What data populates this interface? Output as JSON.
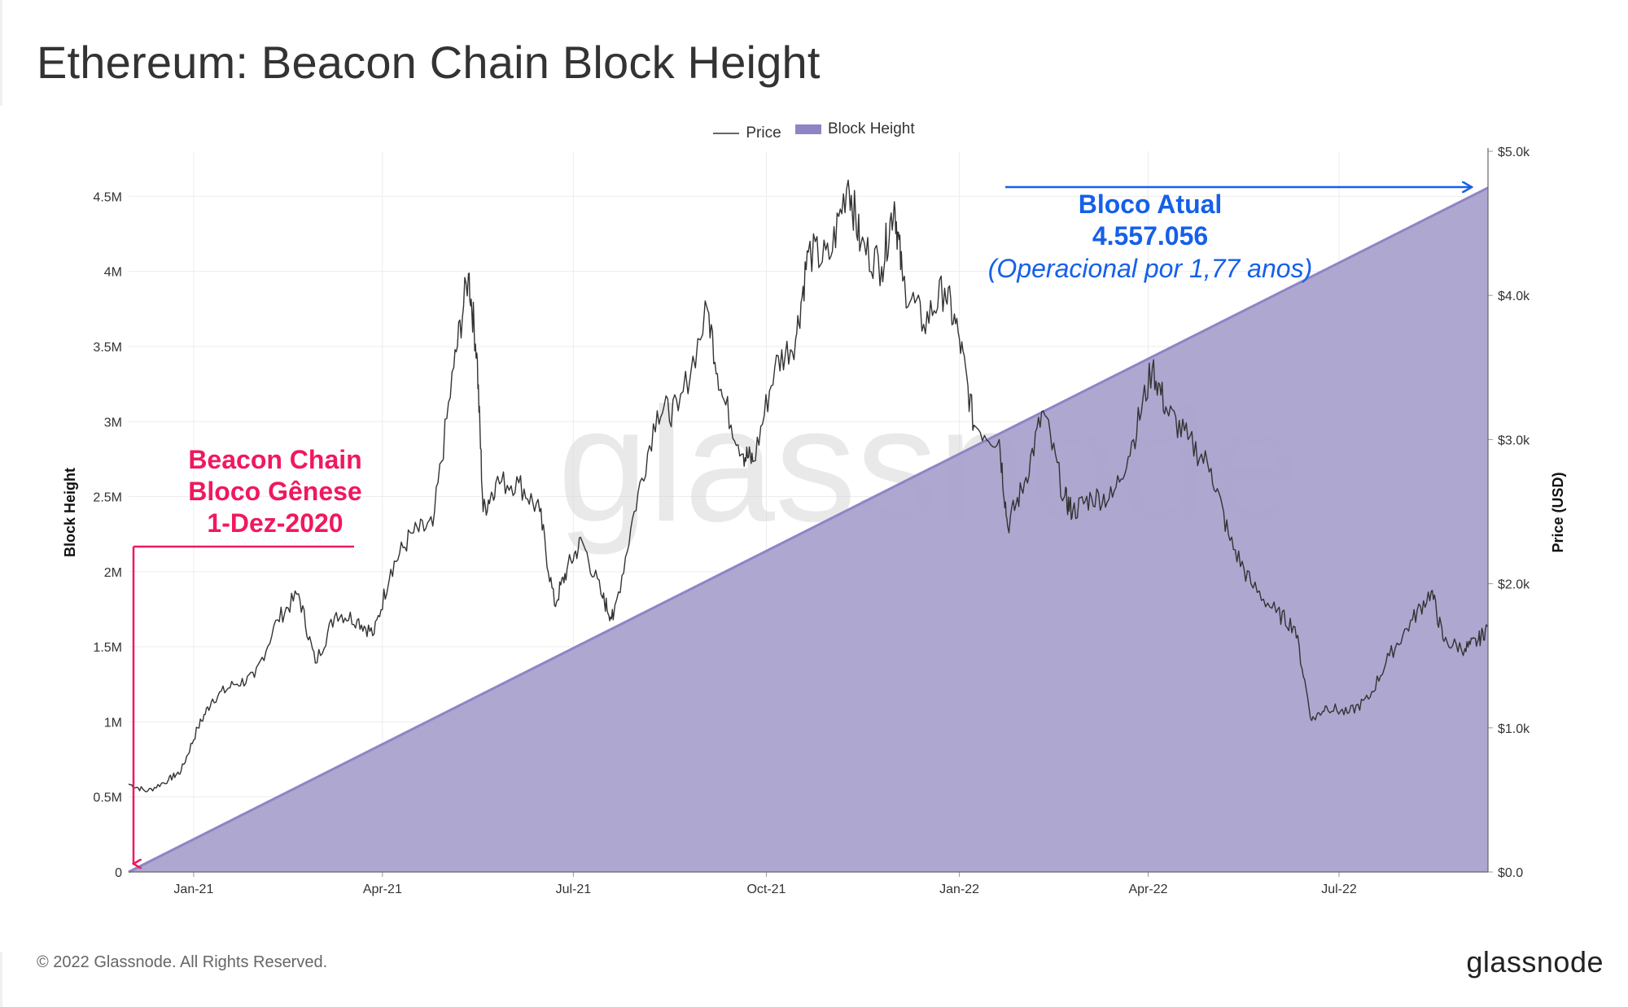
{
  "title": "Ethereum: Beacon Chain Block Height",
  "legend": {
    "price_label": "Price",
    "block_label": "Block Height"
  },
  "footer": {
    "copyright": "© 2022 Glassnode. All Rights Reserved.",
    "brand": "glassnode",
    "watermark": "glassnode"
  },
  "annotations": {
    "genesis": [
      "Beacon Chain",
      "Bloco Gênese",
      "1-Dez-2020"
    ],
    "current": [
      "Bloco Atual",
      "4.557.056",
      "(Operacional por 1,77 anos)"
    ]
  },
  "colors": {
    "area": "#a7a0cc",
    "area_line": "#8f84c5",
    "price": "#333333",
    "pink": "#f0185e",
    "blue": "#1560e8",
    "grid": "#ececec"
  },
  "chart_data": {
    "type": "line",
    "title": "Ethereum: Beacon Chain Block Height",
    "xlabel": "",
    "ylabel_left": "Block Height",
    "ylabel_right": "Price (USD)",
    "ylim_left": [
      0,
      4800000
    ],
    "ylim_right": [
      0,
      5000
    ],
    "xlim": [
      "2020-12-01",
      "2022-09-10"
    ],
    "x_ticks": [
      {
        "label": "Jan-21",
        "date": "2021-01-01"
      },
      {
        "label": "Apr-21",
        "date": "2021-04-01"
      },
      {
        "label": "Jul-21",
        "date": "2021-07-01"
      },
      {
        "label": "Oct-21",
        "date": "2021-10-01"
      },
      {
        "label": "Jan-22",
        "date": "2022-01-01"
      },
      {
        "label": "Apr-22",
        "date": "2022-04-01"
      },
      {
        "label": "Jul-22",
        "date": "2022-07-01"
      }
    ],
    "y_left_ticks": [
      {
        "label": "0",
        "value": 0
      },
      {
        "label": "0.5M",
        "value": 500000
      },
      {
        "label": "1M",
        "value": 1000000
      },
      {
        "label": "1.5M",
        "value": 1500000
      },
      {
        "label": "2M",
        "value": 2000000
      },
      {
        "label": "2.5M",
        "value": 2500000
      },
      {
        "label": "3M",
        "value": 3000000
      },
      {
        "label": "3.5M",
        "value": 3500000
      },
      {
        "label": "4M",
        "value": 4000000
      },
      {
        "label": "4.5M",
        "value": 4500000
      }
    ],
    "y_right_ticks": [
      {
        "label": "$0.0",
        "value": 0
      },
      {
        "label": "$1.0k",
        "value": 1000
      },
      {
        "label": "$2.0k",
        "value": 2000
      },
      {
        "label": "$3.0k",
        "value": 3000
      },
      {
        "label": "$4.0k",
        "value": 4000
      },
      {
        "label": "$5.0k",
        "value": 5000
      }
    ],
    "series": [
      {
        "name": "Block Height",
        "type": "area",
        "axis": "left",
        "points": [
          [
            "2020-12-01",
            0
          ],
          [
            "2022-09-10",
            4557056
          ]
        ]
      },
      {
        "name": "Price",
        "type": "line",
        "axis": "right",
        "points": [
          [
            "2020-12-01",
            610
          ],
          [
            "2020-12-10",
            560
          ],
          [
            "2020-12-20",
            640
          ],
          [
            "2020-12-26",
            700
          ],
          [
            "2021-01-03",
            1000
          ],
          [
            "2021-01-10",
            1200
          ],
          [
            "2021-01-20",
            1300
          ],
          [
            "2021-01-30",
            1350
          ],
          [
            "2021-02-10",
            1750
          ],
          [
            "2021-02-20",
            1930
          ],
          [
            "2021-02-28",
            1450
          ],
          [
            "2021-03-10",
            1800
          ],
          [
            "2021-03-20",
            1750
          ],
          [
            "2021-03-28",
            1650
          ],
          [
            "2021-04-05",
            2100
          ],
          [
            "2021-04-15",
            2350
          ],
          [
            "2021-04-25",
            2400
          ],
          [
            "2021-05-05",
            3500
          ],
          [
            "2021-05-12",
            4150
          ],
          [
            "2021-05-16",
            3600
          ],
          [
            "2021-05-19",
            2500
          ],
          [
            "2021-05-25",
            2700
          ],
          [
            "2021-06-05",
            2700
          ],
          [
            "2021-06-15",
            2500
          ],
          [
            "2021-06-22",
            1850
          ],
          [
            "2021-06-28",
            2100
          ],
          [
            "2021-07-05",
            2300
          ],
          [
            "2021-07-15",
            1900
          ],
          [
            "2021-07-20",
            1750
          ],
          [
            "2021-07-30",
            2500
          ],
          [
            "2021-08-10",
            3200
          ],
          [
            "2021-08-20",
            3200
          ],
          [
            "2021-09-03",
            3900
          ],
          [
            "2021-09-10",
            3300
          ],
          [
            "2021-09-20",
            2900
          ],
          [
            "2021-09-25",
            2850
          ],
          [
            "2021-10-05",
            3500
          ],
          [
            "2021-10-15",
            3700
          ],
          [
            "2021-10-21",
            4300
          ],
          [
            "2021-10-31",
            4250
          ],
          [
            "2021-11-09",
            4800
          ],
          [
            "2021-11-15",
            4350
          ],
          [
            "2021-11-25",
            4200
          ],
          [
            "2021-12-01",
            4650
          ],
          [
            "2021-12-05",
            4100
          ],
          [
            "2021-12-15",
            3800
          ],
          [
            "2021-12-25",
            4050
          ],
          [
            "2022-01-01",
            3700
          ],
          [
            "2022-01-08",
            3100
          ],
          [
            "2022-01-20",
            3000
          ],
          [
            "2022-01-24",
            2400
          ],
          [
            "2022-02-01",
            2700
          ],
          [
            "2022-02-10",
            3200
          ],
          [
            "2022-02-20",
            2600
          ],
          [
            "2022-02-24",
            2500
          ],
          [
            "2022-03-05",
            2600
          ],
          [
            "2022-03-15",
            2600
          ],
          [
            "2022-03-25",
            3000
          ],
          [
            "2022-04-03",
            3500
          ],
          [
            "2022-04-10",
            3200
          ],
          [
            "2022-04-20",
            3000
          ],
          [
            "2022-05-01",
            2800
          ],
          [
            "2022-05-10",
            2300
          ],
          [
            "2022-05-20",
            2000
          ],
          [
            "2022-06-01",
            1800
          ],
          [
            "2022-06-10",
            1700
          ],
          [
            "2022-06-18",
            1050
          ],
          [
            "2022-06-25",
            1150
          ],
          [
            "2022-07-05",
            1100
          ],
          [
            "2022-07-15",
            1200
          ],
          [
            "2022-07-25",
            1500
          ],
          [
            "2022-08-05",
            1750
          ],
          [
            "2022-08-14",
            1950
          ],
          [
            "2022-08-20",
            1600
          ],
          [
            "2022-08-30",
            1550
          ],
          [
            "2022-09-05",
            1600
          ],
          [
            "2022-09-10",
            1700
          ]
        ]
      }
    ]
  }
}
